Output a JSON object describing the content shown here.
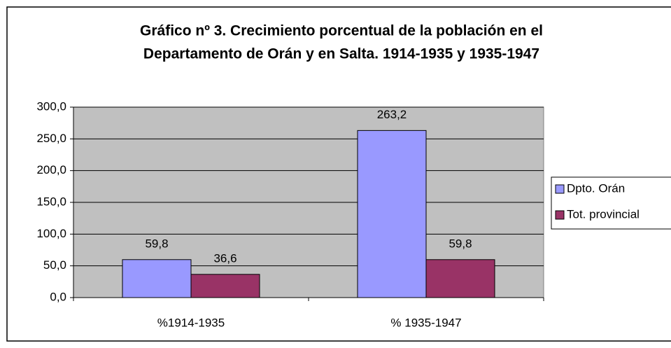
{
  "chart_data": {
    "type": "bar",
    "title": [
      "Gráfico nº 3. Crecimiento porcentual de la población en el",
      "Departamento de Orán y en Salta. 1914-1935 y 1935-1947"
    ],
    "categories": [
      "%1914-1935",
      "% 1935-1947"
    ],
    "series": [
      {
        "name": "Dpto. Orán",
        "color": "#9999ff",
        "values": [
          59.8,
          263.2
        ],
        "value_labels": [
          "59,8",
          "263,2"
        ]
      },
      {
        "name": "Tot. provincial",
        "color": "#993366",
        "values": [
          36.6,
          59.8
        ],
        "value_labels": [
          "36,6",
          "59,8"
        ]
      }
    ],
    "ylim": [
      0,
      300
    ],
    "yticks": [
      {
        "value": 0,
        "label": "0,0"
      },
      {
        "value": 50,
        "label": "50,0"
      },
      {
        "value": 100,
        "label": "100,0"
      },
      {
        "value": 150,
        "label": "150,0"
      },
      {
        "value": 200,
        "label": "200,0"
      },
      {
        "value": 250,
        "label": "250,0"
      },
      {
        "value": 300,
        "label": "300,0"
      }
    ],
    "grid": true,
    "legend": "right"
  }
}
